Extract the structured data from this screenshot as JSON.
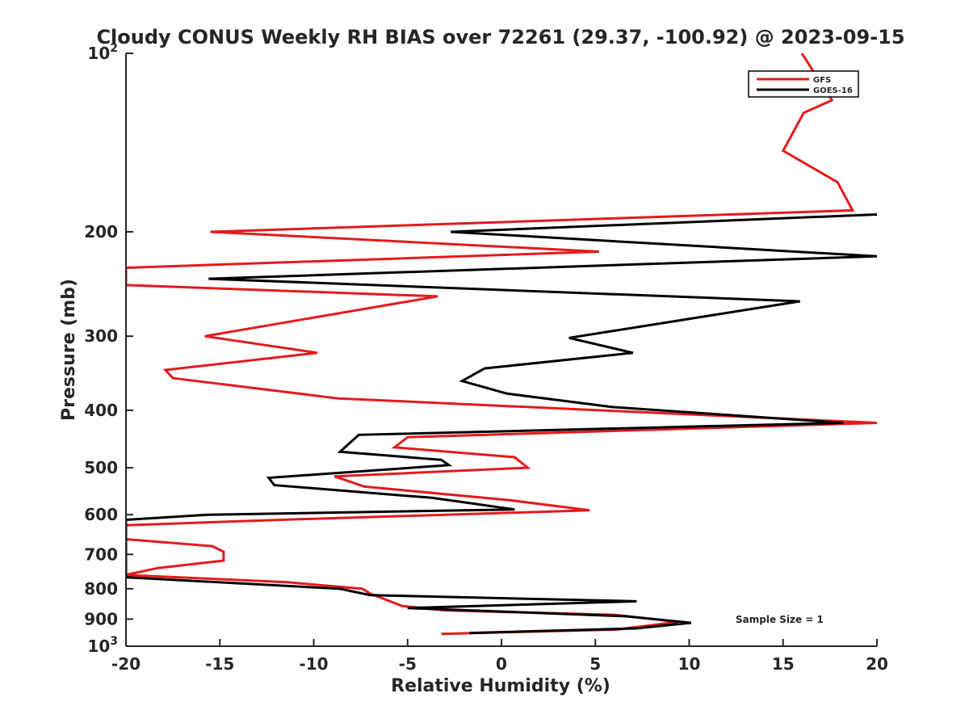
{
  "chart_data": {
    "type": "line",
    "title": "Cloudy CONUS Weekly RH BIAS over 72261 (29.37, -100.92) @ 2023-09-15",
    "xlabel": "Relative Humidity (%)",
    "ylabel": "Pressure (mb)",
    "xlim": [
      -20,
      20
    ],
    "ylim": [
      100,
      1000
    ],
    "y_scale": "log",
    "y_reversed": true,
    "x_ticks": [
      "-20",
      "-15",
      "-10",
      "-5",
      "0",
      "5",
      "10",
      "15",
      "20"
    ],
    "y_ticks": [
      {
        "value": 100,
        "base": "10",
        "exp": "2"
      },
      {
        "value": 200,
        "label": "200"
      },
      {
        "value": 300,
        "label": "300"
      },
      {
        "value": 400,
        "label": "400"
      },
      {
        "value": 500,
        "label": "500"
      },
      {
        "value": 600,
        "label": "600"
      },
      {
        "value": 700,
        "label": "700"
      },
      {
        "value": 800,
        "label": "800"
      },
      {
        "value": 900,
        "label": "900"
      },
      {
        "value": 1000,
        "base": "10",
        "exp": "3"
      }
    ],
    "grid": false,
    "legend_position": "top-right",
    "annotation": "Sample Size = 1",
    "series": [
      {
        "name": "GFS",
        "color": "#e41a1c",
        "points": [
          [
            16.0,
            100
          ],
          [
            17.6,
            120
          ],
          [
            16.1,
            126
          ],
          [
            15.0,
            146
          ],
          [
            17.9,
            165
          ],
          [
            18.7,
            184
          ],
          [
            -15.5,
            200
          ],
          [
            5.2,
            216
          ],
          [
            -20.0,
            230
          ],
          [
            -20.0,
            246
          ],
          [
            -3.4,
            257
          ],
          [
            -15.8,
            300
          ],
          [
            -9.8,
            320
          ],
          [
            -17.9,
            342
          ],
          [
            -17.5,
            353
          ],
          [
            -8.7,
            382
          ],
          [
            20.0,
            420
          ],
          [
            -5.0,
            444
          ],
          [
            -5.7,
            462
          ],
          [
            0.7,
            480
          ],
          [
            1.4,
            500
          ],
          [
            -8.9,
            517
          ],
          [
            -7.3,
            538
          ],
          [
            0.4,
            567
          ],
          [
            4.7,
            590
          ],
          [
            -11.1,
            611
          ],
          [
            -20.0,
            625
          ],
          [
            -20.0,
            660
          ],
          [
            -15.4,
            678
          ],
          [
            -14.8,
            693
          ],
          [
            -14.8,
            717
          ],
          [
            -18.3,
            738
          ],
          [
            -20.0,
            758
          ],
          [
            -11.4,
            780
          ],
          [
            -7.4,
            800
          ],
          [
            -7.0,
            815
          ],
          [
            -5.3,
            855
          ],
          [
            -3.0,
            870
          ],
          [
            6.0,
            885
          ],
          [
            9.4,
            910
          ],
          [
            6.2,
            937
          ],
          [
            -3.2,
            953
          ]
        ]
      },
      {
        "name": "GOES-16",
        "color": "#000000",
        "points": [
          [
            20.0,
            187
          ],
          [
            -2.7,
            200
          ],
          [
            20.0,
            220
          ],
          [
            -15.6,
            240
          ],
          [
            15.9,
            262
          ],
          [
            3.6,
            302
          ],
          [
            7.0,
            320
          ],
          [
            -0.9,
            340
          ],
          [
            -2.1,
            357
          ],
          [
            0.3,
            375
          ],
          [
            5.9,
            395
          ],
          [
            18.2,
            420
          ],
          [
            -7.6,
            440
          ],
          [
            -8.6,
            470
          ],
          [
            -3.2,
            485
          ],
          [
            -2.8,
            495
          ],
          [
            -12.4,
            520
          ],
          [
            -12.1,
            535
          ],
          [
            -3.7,
            562
          ],
          [
            0.7,
            588
          ],
          [
            -15.6,
            600
          ],
          [
            -20.0,
            612
          ],
          [
            -20.0,
            765
          ],
          [
            -8.6,
            800
          ],
          [
            -7.0,
            820
          ],
          [
            7.2,
            840
          ],
          [
            -5.0,
            862
          ],
          [
            6.6,
            890
          ],
          [
            10.1,
            913
          ],
          [
            7.2,
            933
          ],
          [
            -1.7,
            950
          ]
        ]
      }
    ]
  }
}
